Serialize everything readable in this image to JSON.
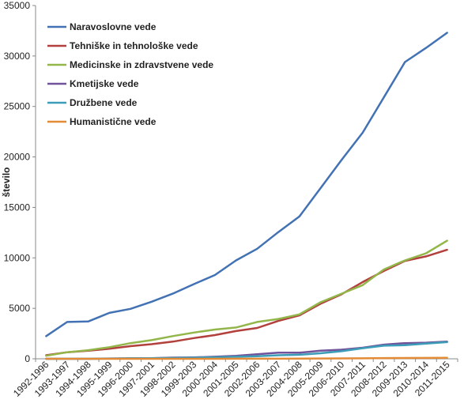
{
  "chart_data": {
    "type": "line",
    "title": "",
    "xlabel": "",
    "ylabel": "število",
    "ylim": [
      0,
      35000
    ],
    "yticks": [
      0,
      5000,
      10000,
      15000,
      20000,
      25000,
      30000,
      35000
    ],
    "grid": false,
    "legend_position": "top-left",
    "categories": [
      "1992-1996",
      "1993-1997",
      "1994-1998",
      "1995-1999",
      "1996-2000",
      "1997-2001",
      "1998-2002",
      "1999-2003",
      "2000-2004",
      "2001-2005",
      "2002-2006",
      "2003-2007",
      "2004-2008",
      "2005-2009",
      "2006-2010",
      "2007-2011",
      "2008-2012",
      "2009-2013",
      "2010-2014",
      "2011-2015"
    ],
    "series": [
      {
        "name": "Naravoslovne vede",
        "color": "#4372b4",
        "values": [
          2250,
          3650,
          3700,
          4550,
          4950,
          5650,
          6450,
          7400,
          8300,
          9750,
          10900,
          12550,
          14100,
          16900,
          19700,
          22400,
          25900,
          29400,
          30800,
          32300
        ]
      },
      {
        "name": "Tehniške in tehnološke vede",
        "color": "#b2403c",
        "values": [
          350,
          650,
          800,
          1000,
          1250,
          1450,
          1700,
          2050,
          2350,
          2750,
          3050,
          3750,
          4300,
          5450,
          6400,
          7600,
          8700,
          9700,
          10150,
          10800
        ]
      },
      {
        "name": "Medicinske in zdravstvene vede",
        "color": "#93b64b",
        "values": [
          300,
          650,
          850,
          1150,
          1550,
          1850,
          2250,
          2600,
          2900,
          3100,
          3650,
          3950,
          4400,
          5600,
          6450,
          7300,
          8850,
          9750,
          10450,
          11700
        ]
      },
      {
        "name": "Kmetijske vede",
        "color": "#70539a",
        "values": [
          0,
          0,
          0,
          30,
          50,
          60,
          120,
          140,
          200,
          300,
          450,
          600,
          600,
          800,
          900,
          1100,
          1400,
          1550,
          1600,
          1700
        ]
      },
      {
        "name": "Družbene vede",
        "color": "#3c9db8",
        "values": [
          0,
          0,
          0,
          20,
          40,
          60,
          80,
          110,
          150,
          200,
          250,
          350,
          400,
          550,
          750,
          1050,
          1300,
          1350,
          1500,
          1650
        ]
      },
      {
        "name": "Humanistične vede",
        "color": "#e38b36",
        "values": [
          0,
          0,
          0,
          0,
          0,
          0,
          0,
          0,
          0,
          10,
          10,
          10,
          20,
          30,
          40,
          50,
          70,
          80,
          90,
          100
        ]
      }
    ]
  }
}
